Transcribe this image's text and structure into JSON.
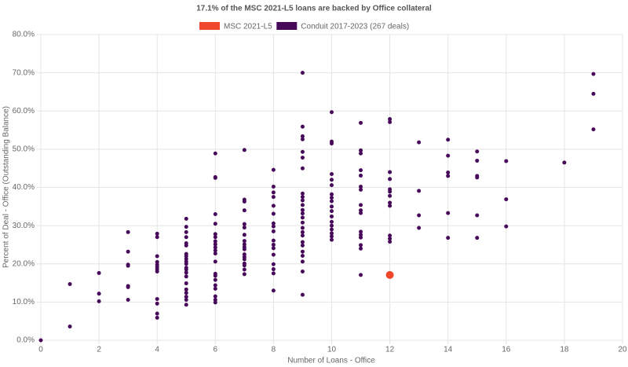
{
  "chart_data": {
    "type": "scatter",
    "title": "17.1% of the MSC 2021-L5 loans are backed by Office collateral",
    "x_label": "Number of Loans - Office",
    "y_label": "Percent of Deal - Office (Outstanding Balance)",
    "xlim": [
      0,
      20
    ],
    "xticks": [
      0,
      2,
      4,
      6,
      8,
      10,
      12,
      14,
      16,
      18,
      20
    ],
    "ylim": [
      0,
      80
    ],
    "yticks": [
      {
        "value": 0,
        "label": "0.0%"
      },
      {
        "value": 10,
        "label": "10.0%"
      },
      {
        "value": 20,
        "label": "20.0%"
      },
      {
        "value": 30,
        "label": "30.0%"
      },
      {
        "value": 40,
        "label": "40.0%"
      },
      {
        "value": 50,
        "label": "50.0%"
      },
      {
        "value": 60,
        "label": "60.0%"
      },
      {
        "value": 70,
        "label": "70.0%"
      },
      {
        "value": 80,
        "label": "80.0%"
      }
    ],
    "grid": true,
    "legend": "top",
    "series": [
      {
        "name": "MSC 2021-L5",
        "color": "#f0462a",
        "x": [
          12
        ],
        "values": [
          17.1
        ]
      },
      {
        "name": "Conduit 2017-2023 (267 deals)",
        "color": "#470a5a",
        "x": [
          0,
          1,
          1,
          2,
          2,
          2,
          3,
          3,
          3,
          3,
          3,
          3,
          3,
          4,
          4,
          4,
          4,
          4,
          4,
          4,
          4,
          4,
          4,
          4,
          4,
          5,
          5,
          5,
          5,
          5,
          5,
          5,
          5,
          5,
          5,
          5,
          5,
          5,
          5,
          5,
          5,
          5,
          5,
          5,
          5,
          5,
          6,
          6,
          6,
          6,
          6,
          6,
          6,
          6,
          6,
          6,
          6,
          6,
          6,
          6,
          6,
          6,
          6,
          6,
          6,
          6,
          6,
          7,
          7,
          7,
          7,
          7,
          7,
          7,
          7,
          7,
          7,
          7,
          7,
          7,
          7,
          7,
          7,
          7,
          7,
          8,
          8,
          8,
          8,
          8,
          8,
          8,
          8,
          8,
          8,
          8,
          8,
          8,
          8,
          8,
          8,
          8,
          9,
          9,
          9,
          9,
          9,
          9,
          9,
          9,
          9,
          9,
          9,
          9,
          9,
          9,
          9,
          9,
          9,
          9,
          9,
          9,
          9,
          9,
          9,
          9,
          9,
          10,
          10,
          10,
          10,
          10,
          10,
          10,
          10,
          10,
          10,
          10,
          10,
          10,
          10,
          10,
          10,
          10,
          10,
          11,
          11,
          11,
          11,
          11,
          11,
          11,
          11,
          11,
          11,
          11,
          11,
          11,
          11,
          11,
          11,
          12,
          12,
          12,
          12,
          12,
          12,
          12,
          12,
          12,
          12,
          12,
          12,
          13,
          13,
          13,
          13,
          14,
          14,
          14,
          14,
          14,
          14,
          15,
          15,
          15,
          15,
          15,
          15,
          16,
          16,
          16,
          18,
          19,
          19,
          19
        ],
        "values": [
          0,
          14.7,
          3.6,
          17.6,
          12.2,
          10.2,
          28.3,
          23.2,
          19.8,
          19.5,
          14.2,
          13.9,
          10.6,
          27.9,
          27.0,
          22.0,
          20.5,
          19.8,
          19.2,
          18.6,
          18.0,
          10.8,
          9.6,
          7.0,
          5.9,
          31.8,
          29.7,
          28.3,
          27.0,
          25.4,
          24.8,
          22.6,
          22.0,
          21.3,
          20.6,
          20.0,
          19.0,
          18.5,
          17.7,
          16.7,
          14.9,
          13.3,
          12.4,
          11.4,
          10.6,
          9.3,
          48.9,
          42.7,
          42.5,
          33.0,
          30.5,
          27.8,
          27.0,
          25.9,
          25.1,
          24.3,
          23.5,
          22.7,
          20.6,
          17.4,
          16.9,
          15.8,
          14.4,
          13.5,
          11.5,
          10.6,
          9.9,
          49.8,
          36.8,
          36.3,
          34.0,
          30.4,
          29.5,
          27.6,
          26.0,
          25.1,
          24.4,
          23.8,
          22.5,
          21.8,
          21.2,
          20.1,
          19.6,
          18.5,
          17.3,
          44.6,
          40.2,
          38.7,
          37.5,
          35.2,
          33.1,
          30.6,
          29.8,
          28.5,
          26.1,
          25.0,
          24.1,
          22.4,
          19.9,
          18.6,
          17.5,
          13.0,
          70.0,
          55.9,
          53.4,
          52.6,
          49.3,
          47.8,
          45.0,
          38.4,
          37.5,
          36.6,
          35.4,
          34.1,
          33.2,
          32.1,
          30.8,
          29.4,
          28.3,
          27.4,
          25.7,
          24.8,
          23.2,
          22.1,
          20.6,
          18.0,
          11.9,
          59.7,
          52.0,
          51.5,
          43.5,
          42.0,
          40.6,
          38.2,
          37.3,
          36.4,
          35.0,
          33.8,
          32.4,
          31.0,
          30.0,
          29.0,
          28.0,
          27.2,
          26.3,
          56.9,
          49.7,
          48.9,
          44.5,
          43.1,
          40.2,
          39.4,
          35.4,
          34.0,
          33.3,
          28.4,
          27.6,
          26.9,
          24.9,
          24.0,
          17.1,
          57.9,
          57.1,
          44.0,
          42.2,
          39.5,
          38.9,
          37.8,
          36.0,
          35.2,
          27.4,
          26.6,
          25.8,
          51.8,
          39.1,
          32.7,
          29.4,
          52.5,
          48.3,
          43.9,
          43.0,
          33.3,
          26.8,
          49.4,
          47.0,
          43.0,
          42.6,
          32.7,
          26.8,
          46.9,
          36.9,
          29.8,
          46.5,
          69.7,
          64.5,
          55.2
        ]
      }
    ]
  }
}
